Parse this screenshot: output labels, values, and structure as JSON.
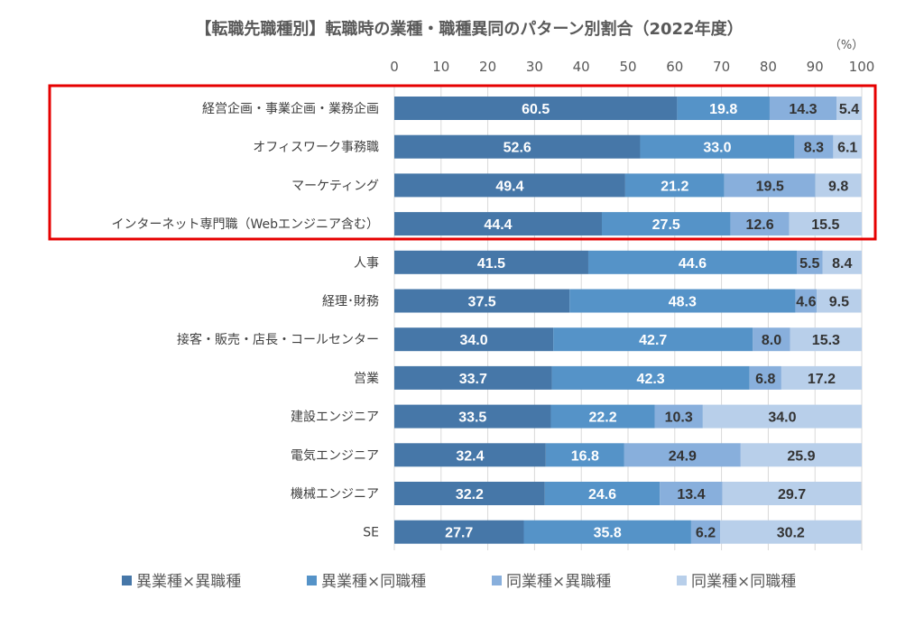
{
  "chart_data": {
    "type": "bar",
    "orientation": "horizontal-stacked-100",
    "title": "【転職先職種別】転職時の業種・職種異同のパターン別割合（2022年度）",
    "unit_label": "（%）",
    "xlim": [
      0,
      100
    ],
    "xticks": [
      0,
      10,
      20,
      30,
      40,
      50,
      60,
      70,
      80,
      90,
      100
    ],
    "grid": true,
    "legend_position": "bottom",
    "categories": [
      "経営企画・事業企画・業務企画",
      "オフィスワーク事務職",
      "マーケティング",
      "インターネット専門職（Webエンジニア含む）",
      "人事",
      "経理･財務",
      "接客・販売・店長・コールセンター",
      "営業",
      "建設エンジニア",
      "電気エンジニア",
      "機械エンジニア",
      "SE"
    ],
    "series": [
      {
        "name": "異業種×異職種",
        "color": "#4677a8",
        "values": [
          60.5,
          52.6,
          49.4,
          44.4,
          41.5,
          37.5,
          34.0,
          33.7,
          33.5,
          32.4,
          32.2,
          27.7
        ]
      },
      {
        "name": "異業種×同職種",
        "color": "#5593c8",
        "values": [
          19.8,
          33.0,
          21.2,
          27.5,
          44.6,
          48.3,
          42.7,
          42.3,
          22.2,
          16.8,
          24.6,
          35.8
        ]
      },
      {
        "name": "同業種×異職種",
        "color": "#88afdc",
        "values": [
          14.3,
          8.3,
          19.5,
          12.6,
          5.5,
          4.6,
          8.0,
          6.8,
          10.3,
          24.9,
          13.4,
          6.2
        ]
      },
      {
        "name": "同業種×同職種",
        "color": "#b8cfea",
        "values": [
          5.4,
          6.1,
          9.8,
          15.5,
          8.4,
          9.5,
          15.3,
          17.2,
          34.0,
          25.9,
          29.7,
          30.2
        ]
      }
    ],
    "annotation": "red box highlighting first four categories"
  }
}
